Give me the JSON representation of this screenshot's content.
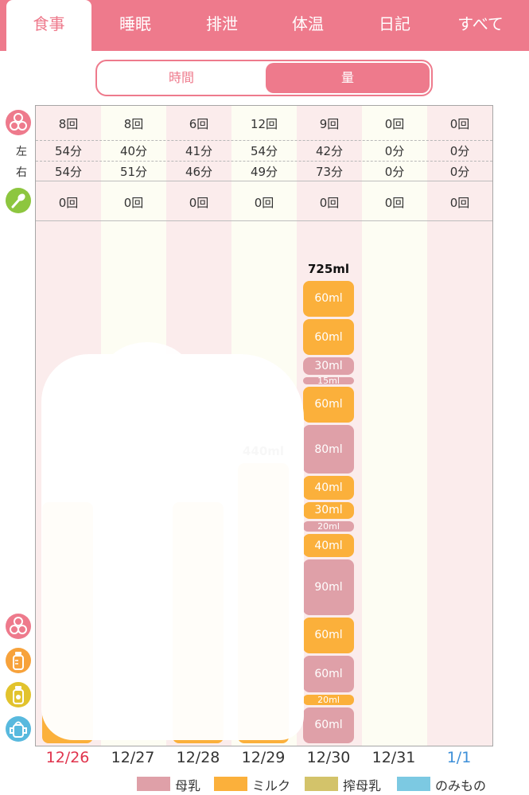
{
  "tabs": [
    {
      "label": "食事",
      "active": true
    },
    {
      "label": "睡眠",
      "active": false
    },
    {
      "label": "排泄",
      "active": false
    },
    {
      "label": "体温",
      "active": false
    },
    {
      "label": "日記",
      "active": false
    },
    {
      "label": "すべて",
      "active": false
    }
  ],
  "segmented": {
    "time_label": "時間",
    "amount_label": "量",
    "selected": "amount"
  },
  "summary": {
    "left_label": "左",
    "right_label": "右",
    "breast_counts": [
      "8回",
      "8回",
      "6回",
      "12回",
      "9回",
      "0回",
      "0回"
    ],
    "left_minutes": [
      "54分",
      "40分",
      "41分",
      "54分",
      "42分",
      "0分",
      "0分"
    ],
    "right_minutes": [
      "54分",
      "51分",
      "46分",
      "49分",
      "73分",
      "0分",
      "0分"
    ],
    "solid_food_counts": [
      "0回",
      "0回",
      "0回",
      "0回",
      "0回",
      "0回",
      "0回"
    ]
  },
  "icons": {
    "breast": "breast-icon",
    "spoon": "spoon-icon",
    "milk_bottle": "milk-bottle-icon",
    "pumped_bottle": "pumped-milk-bottle-icon",
    "sippy_cup": "sippy-cup-icon"
  },
  "colors": {
    "accent": "#ee7a8c",
    "breast_milk": "#dfa0a8",
    "formula": "#fbb03b",
    "pumped": "#d3c36a",
    "drink": "#7cc9e2",
    "col_pink": "#fbecec",
    "col_cream": "#fdfdf3",
    "sunday": "#e0334c",
    "saturday": "#3d8fd8"
  },
  "chart_data": {
    "type": "bar",
    "stacked": true,
    "ylabel": "ml",
    "ylim": [
      0,
      900
    ],
    "categories": [
      "12/26",
      "12/27",
      "12/28",
      "12/29",
      "12/30",
      "12/31",
      "1/1"
    ],
    "category_colors": [
      "sunday",
      "normal",
      "normal",
      "normal",
      "normal",
      "normal",
      "saturday"
    ],
    "totals": [
      "",
      "",
      "",
      "440ml",
      "725ml",
      "",
      ""
    ],
    "series": [
      {
        "name": "母乳",
        "color": "#dfa0a8"
      },
      {
        "name": "ミルク",
        "color": "#fbb03b"
      },
      {
        "name": "搾母乳",
        "color": "#d3c36a"
      },
      {
        "name": "のみもの",
        "color": "#7cc9e2"
      }
    ],
    "day_segments": {
      "12/30": [
        {
          "series": "母乳",
          "value": 60,
          "label": "60ml"
        },
        {
          "series": "ミルク",
          "value": 20,
          "label": "20ml"
        },
        {
          "series": "母乳",
          "value": 60,
          "label": "60ml"
        },
        {
          "series": "ミルク",
          "value": 60,
          "label": "60ml"
        },
        {
          "series": "母乳",
          "value": 90,
          "label": "90ml"
        },
        {
          "series": "ミルク",
          "value": 40,
          "label": "40ml"
        },
        {
          "series": "母乳",
          "value": 20,
          "label": "20ml"
        },
        {
          "series": "ミルク",
          "value": 30,
          "label": "30ml"
        },
        {
          "series": "ミルク",
          "value": 40,
          "label": "40ml"
        },
        {
          "series": "母乳",
          "value": 80,
          "label": "80ml"
        },
        {
          "series": "ミルク",
          "value": 60,
          "label": "60ml"
        },
        {
          "series": "母乳",
          "value": 15,
          "label": "15ml"
        },
        {
          "series": "母乳",
          "value": 30,
          "label": "30ml"
        },
        {
          "series": "ミルク",
          "value": 60,
          "label": "60ml"
        },
        {
          "series": "ミルク",
          "value": 60,
          "label": "60ml"
        }
      ],
      "12/29": [
        {
          "series": "ミルク",
          "value": 440,
          "label": ""
        }
      ],
      "12/28": [
        {
          "series": "ミルク",
          "value": 380,
          "label": ""
        }
      ],
      "12/26": [
        {
          "series": "ミルク",
          "value": 380,
          "label": ""
        }
      ]
    },
    "legend": [
      "母乳",
      "ミルク",
      "搾母乳",
      "のみもの"
    ],
    "legend_position": "bottom"
  }
}
